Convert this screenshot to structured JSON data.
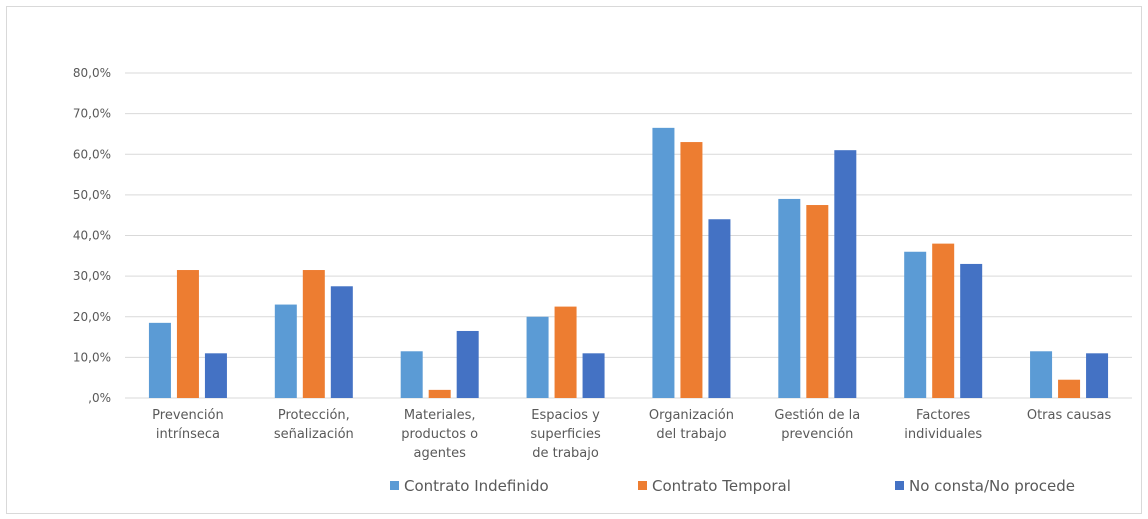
{
  "chart_data": {
    "type": "bar",
    "title": "",
    "xlabel": "",
    "ylabel": "",
    "ylim": [
      0,
      80
    ],
    "y_ticks": [
      0,
      10,
      20,
      30,
      40,
      50,
      60,
      70,
      80
    ],
    "y_tick_labels": [
      ",0%",
      "10,0%",
      "20,0%",
      "30,0%",
      "40,0%",
      "50,0%",
      "60,0%",
      "70,0%",
      "80,0%"
    ],
    "grid": true,
    "legend_position": "bottom",
    "categories": [
      [
        "Prevención",
        "intrínseca"
      ],
      [
        "Protección,",
        "señalización"
      ],
      [
        "Materiales,",
        "productos o",
        "agentes"
      ],
      [
        "Espacios y",
        "superficies",
        "de trabajo"
      ],
      [
        "Organización",
        "del trabajo"
      ],
      [
        "Gestión de la",
        "prevención"
      ],
      [
        "Factores",
        "individuales"
      ],
      [
        "Otras causas"
      ]
    ],
    "series": [
      {
        "name": "Contrato Indefinido",
        "color": "#5b9bd5",
        "values": [
          18.5,
          23.0,
          11.5,
          20.0,
          66.5,
          49.0,
          36.0,
          11.5
        ]
      },
      {
        "name": "Contrato Temporal",
        "color": "#ed7d31",
        "values": [
          31.5,
          31.5,
          2.0,
          22.5,
          63.0,
          47.5,
          38.0,
          4.5
        ]
      },
      {
        "name": "No consta/No procede",
        "color": "#4472c4",
        "values": [
          11.0,
          27.5,
          16.5,
          11.0,
          44.0,
          61.0,
          33.0,
          11.0
        ]
      }
    ]
  }
}
